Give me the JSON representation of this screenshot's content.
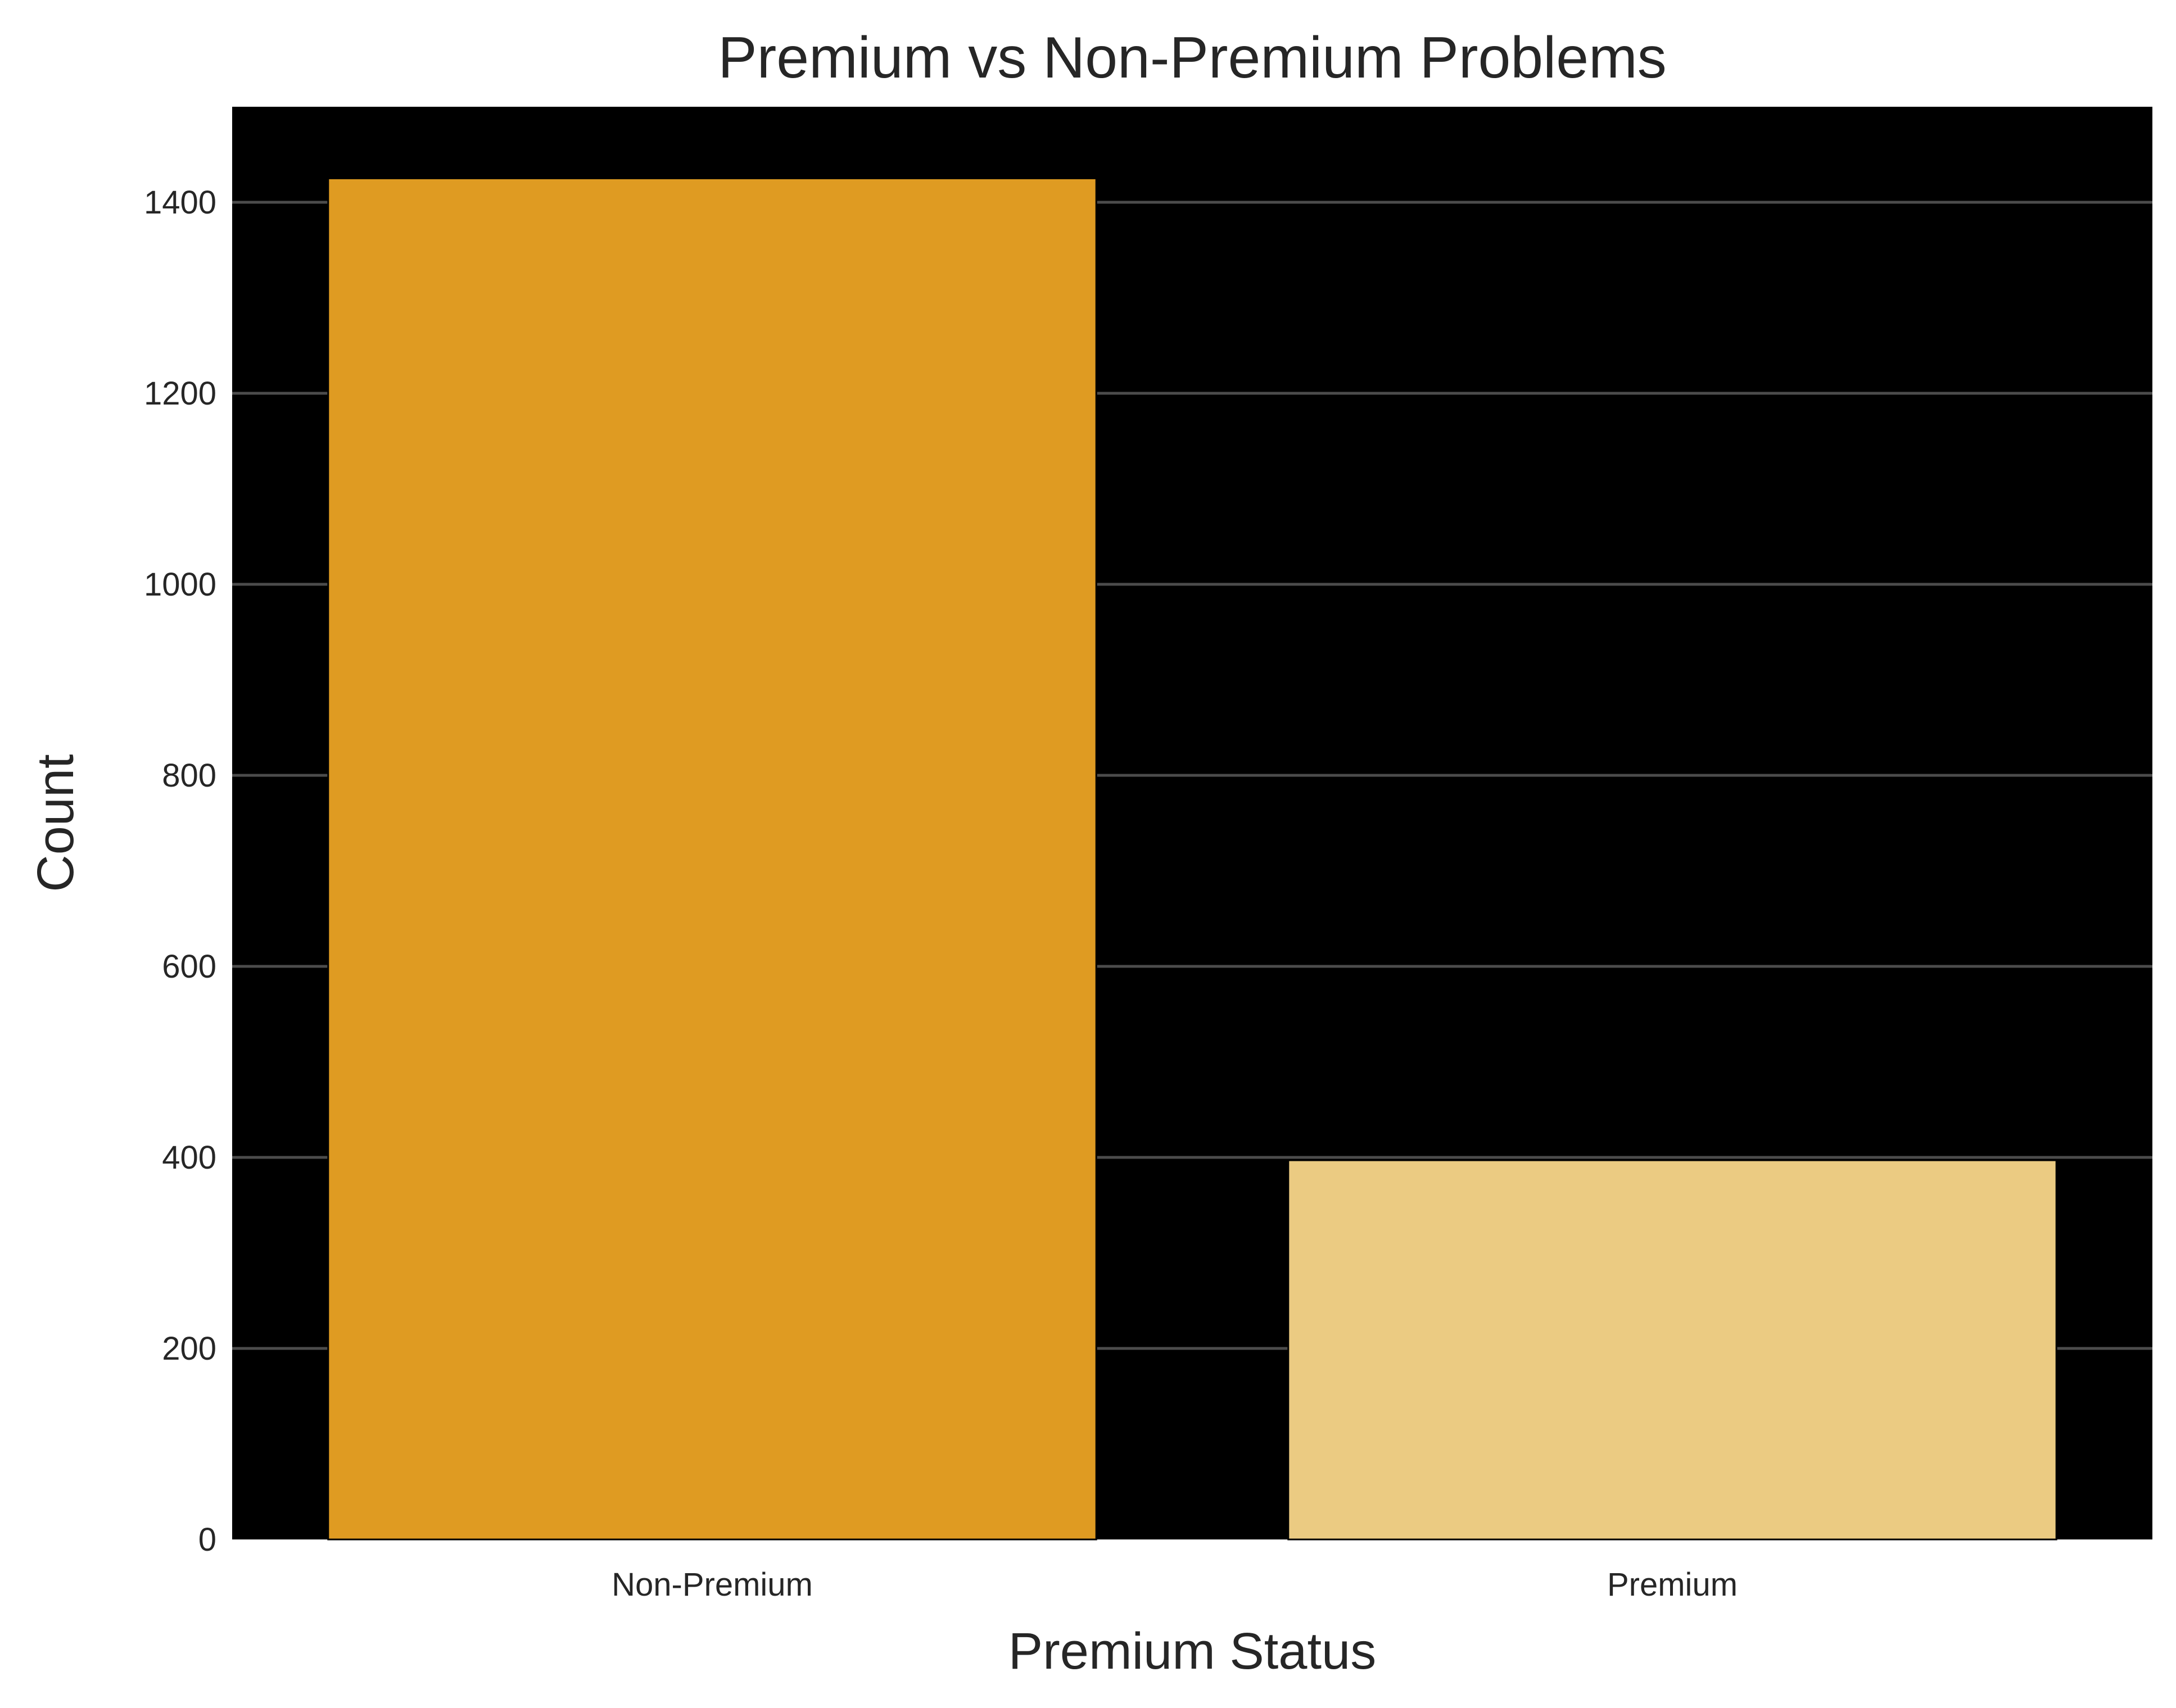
{
  "chart_data": {
    "type": "bar",
    "title": "Premium vs Non-Premium Problems",
    "xlabel": "Premium Status",
    "ylabel": "Count",
    "categories": [
      "Non-Premium",
      "Premium"
    ],
    "values": [
      1425,
      397
    ],
    "ylim": [
      0,
      1500
    ],
    "yticks": [
      0,
      200,
      400,
      600,
      800,
      1000,
      1200,
      1400
    ],
    "grid": true,
    "grid_axis": "y",
    "legend": false,
    "colors": {
      "plot_background": "#000000",
      "page_background": "#ffffff",
      "grid": "#4c4c4c",
      "text": "#262626",
      "bars": [
        "#df9b22",
        "#ebcb82"
      ]
    }
  }
}
